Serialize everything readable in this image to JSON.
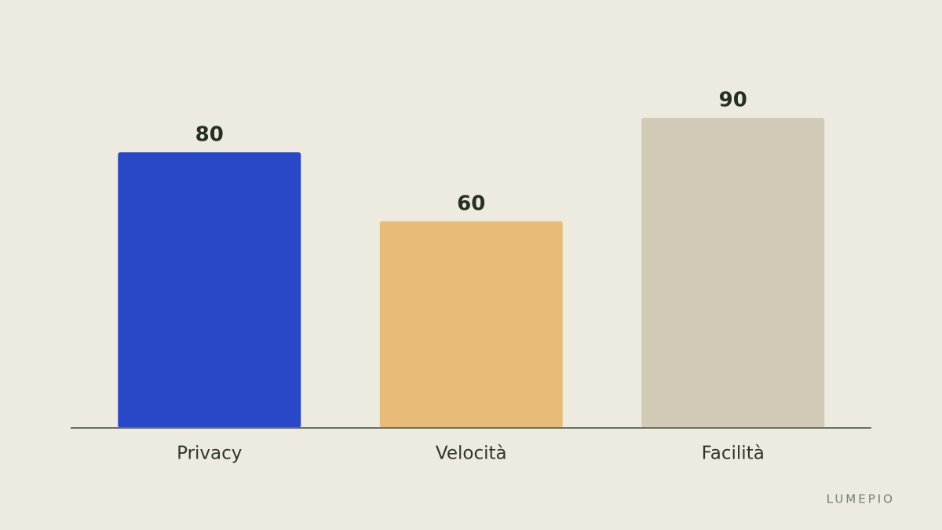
{
  "chart_data": {
    "type": "bar",
    "categories": [
      "Privacy",
      "Velocità",
      "Facilità"
    ],
    "values": [
      80,
      60,
      90
    ],
    "colors": [
      "#2848c8",
      "#e6bc78",
      "#d0cab7"
    ],
    "watermark": "LUMEPIO"
  }
}
